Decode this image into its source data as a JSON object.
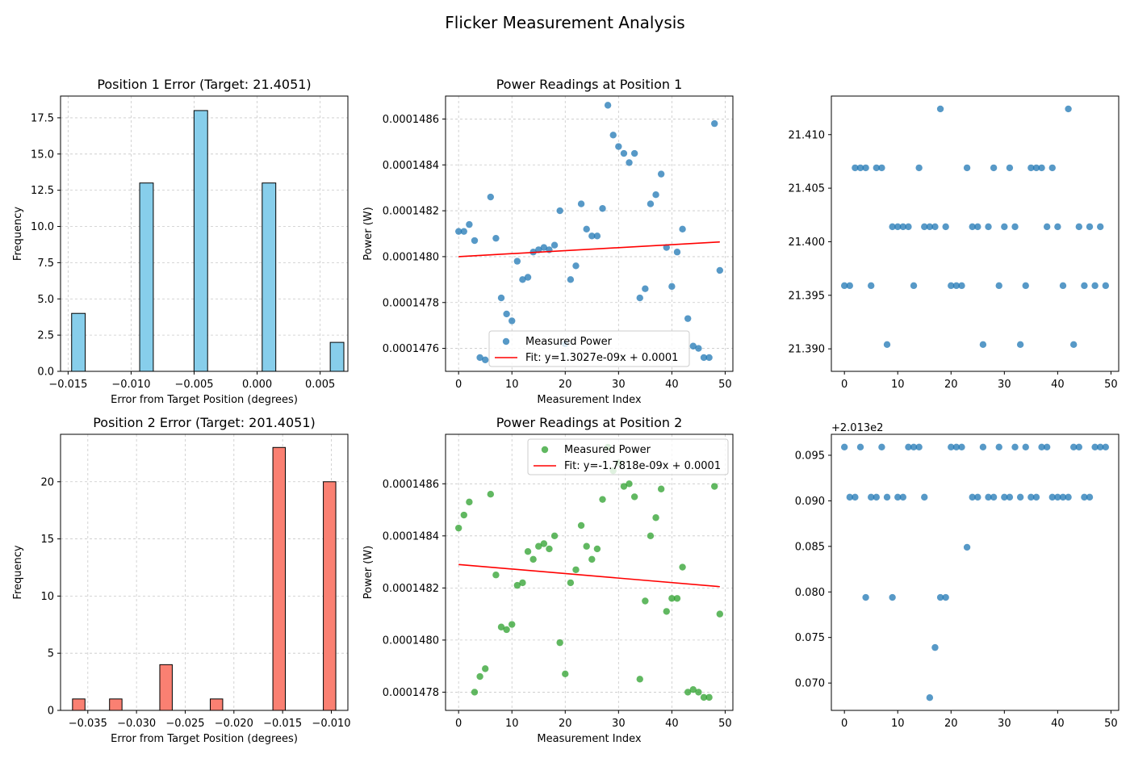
{
  "figure": {
    "title": "Flicker Measurement Analysis"
  },
  "chart_data": [
    {
      "id": "p1_hist",
      "type": "bar",
      "title": "Position 1 Error (Target: 21.4051)",
      "xlabel": "Error from Target Position (degrees)",
      "ylabel": "Frequency",
      "xlim": [
        -0.0156,
        0.0072
      ],
      "ylim": [
        0,
        19
      ],
      "xticks": [
        -0.015,
        -0.01,
        -0.005,
        0.0,
        0.005
      ],
      "xtick_labels": [
        "−0.015",
        "−0.010",
        "−0.005",
        "0.000",
        "0.005"
      ],
      "yticks": [
        0,
        2.5,
        5,
        7.5,
        10,
        12.5,
        15,
        17.5
      ],
      "ytick_labels": [
        "0.0",
        "2.5",
        "5.0",
        "7.5",
        "10.0",
        "12.5",
        "15.0",
        "17.5"
      ],
      "grid": true,
      "bar_color": "#87CEEB",
      "bin_width": 0.00108,
      "bins": [
        {
          "x": -0.01418,
          "count": 4
        },
        {
          "x": -0.00878,
          "count": 13
        },
        {
          "x": -0.00447,
          "count": 18
        },
        {
          "x": 0.00094,
          "count": 13
        },
        {
          "x": 0.00634,
          "count": 2
        }
      ]
    },
    {
      "id": "p1_power",
      "type": "scatter",
      "title": "Power Readings at Position 1",
      "xlabel": "Measurement Index",
      "ylabel": "Power (W)",
      "xlim": [
        -2.45,
        51.45
      ],
      "ylim": [
        0.0001475,
        0.0001487
      ],
      "xticks": [
        0,
        10,
        20,
        30,
        40,
        50
      ],
      "xtick_labels": [
        "0",
        "10",
        "20",
        "30",
        "40",
        "50"
      ],
      "yticks": [
        0.0001476,
        0.0001478,
        0.000148,
        0.0001482,
        0.0001484,
        0.0001486
      ],
      "ytick_labels": [
        "0.0001476",
        "0.0001478",
        "0.0001480",
        "0.0001482",
        "0.0001484",
        "0.0001486"
      ],
      "grid": true,
      "legend": "bottom-center",
      "series": [
        {
          "name": "Measured Power",
          "color": "#1f77b4",
          "x": [
            0,
            1,
            2,
            3,
            4,
            5,
            6,
            7,
            8,
            9,
            10,
            11,
            12,
            13,
            14,
            15,
            16,
            17,
            18,
            19,
            20,
            21,
            22,
            23,
            24,
            25,
            26,
            27,
            28,
            29,
            30,
            31,
            32,
            33,
            34,
            35,
            36,
            37,
            38,
            39,
            40,
            41,
            42,
            43,
            44,
            45,
            46,
            47,
            48,
            49
          ],
          "y": [
            0.00014811,
            0.00014811,
            0.00014814,
            0.00014807,
            0.00014756,
            0.00014755,
            0.00014826,
            0.00014808,
            0.00014782,
            0.00014775,
            0.00014772,
            0.00014798,
            0.0001479,
            0.00014791,
            0.00014802,
            0.00014803,
            0.00014804,
            0.00014803,
            0.00014805,
            0.0001482,
            0.00014762,
            0.0001479,
            0.00014796,
            0.00014823,
            0.00014812,
            0.00014809,
            0.00014809,
            0.00014821,
            0.00014866,
            0.00014853,
            0.00014848,
            0.00014845,
            0.00014841,
            0.00014845,
            0.00014782,
            0.00014786,
            0.00014823,
            0.00014827,
            0.00014836,
            0.00014804,
            0.00014787,
            0.00014802,
            0.00014812,
            0.00014773,
            0.00014761,
            0.0001476,
            0.00014756,
            0.00014756,
            0.00014858,
            0.00014794
          ]
        }
      ],
      "fit": {
        "name": "Fit: y=1.3027e-09x + 0.0001",
        "color": "#ff0000",
        "x": [
          0,
          49
        ],
        "y": [
          0.000148,
          0.000148064
        ]
      }
    },
    {
      "id": "p1_position",
      "type": "scatter",
      "title": "",
      "xlabel": "",
      "ylabel": "",
      "xlim": [
        -2.45,
        51.45
      ],
      "ylim": [
        21.3879,
        21.4136
      ],
      "xticks": [
        0,
        10,
        20,
        30,
        40,
        50
      ],
      "xtick_labels": [
        "0",
        "10",
        "20",
        "30",
        "40",
        "50"
      ],
      "yticks": [
        21.39,
        21.395,
        21.4,
        21.405,
        21.41
      ],
      "ytick_labels": [
        "21.390",
        "21.395",
        "21.400",
        "21.405",
        "21.410"
      ],
      "grid": false,
      "series": [
        {
          "color": "#1f77b4",
          "x": [
            0,
            1,
            2,
            3,
            4,
            5,
            6,
            7,
            8,
            9,
            10,
            11,
            12,
            13,
            14,
            15,
            16,
            17,
            18,
            19,
            20,
            21,
            22,
            23,
            24,
            25,
            26,
            27,
            28,
            29,
            30,
            31,
            32,
            33,
            34,
            35,
            36,
            37,
            38,
            39,
            40,
            41,
            42,
            43,
            44,
            45,
            46,
            47,
            48,
            49
          ],
          "y": [
            21.3959,
            21.3959,
            21.4069,
            21.4069,
            21.4069,
            21.3959,
            21.4069,
            21.4069,
            21.3904,
            21.4014,
            21.4014,
            21.4014,
            21.4014,
            21.3959,
            21.4069,
            21.4014,
            21.4014,
            21.4014,
            21.4124,
            21.4014,
            21.3959,
            21.3959,
            21.3959,
            21.4069,
            21.4014,
            21.4014,
            21.3904,
            21.4014,
            21.4069,
            21.3959,
            21.4014,
            21.4069,
            21.4014,
            21.3904,
            21.3959,
            21.4069,
            21.4069,
            21.4069,
            21.4014,
            21.4069,
            21.4014,
            21.3959,
            21.4124,
            21.3904,
            21.4014,
            21.3959,
            21.4014,
            21.3959,
            21.4014,
            21.3959
          ]
        }
      ]
    },
    {
      "id": "p2_hist",
      "type": "bar",
      "title": "Position 2 Error (Target: 201.4051)",
      "xlabel": "Error from Target Position (degrees)",
      "ylabel": "Frequency",
      "xlim": [
        -0.0378,
        -0.0083
      ],
      "ylim": [
        0,
        24.15
      ],
      "xticks": [
        -0.035,
        -0.03,
        -0.025,
        -0.02,
        -0.015,
        -0.01
      ],
      "xtick_labels": [
        "−0.035",
        "−0.030",
        "−0.025",
        "−0.020",
        "−0.015",
        "−0.010"
      ],
      "yticks": [
        0,
        5,
        10,
        15,
        20
      ],
      "ytick_labels": [
        "0",
        "5",
        "10",
        "15",
        "20"
      ],
      "grid": true,
      "bar_color": "#FA8072",
      "bin_width": 0.00128,
      "bins": [
        {
          "x": -0.03593,
          "count": 1
        },
        {
          "x": -0.03213,
          "count": 1
        },
        {
          "x": -0.02697,
          "count": 4
        },
        {
          "x": -0.02179,
          "count": 1
        },
        {
          "x": -0.01536,
          "count": 23
        },
        {
          "x": -0.01018,
          "count": 20
        }
      ]
    },
    {
      "id": "p2_power",
      "type": "scatter",
      "title": "Power Readings at Position 2",
      "xlabel": "Measurement Index",
      "ylabel": "Power (W)",
      "xlim": [
        -2.45,
        51.45
      ],
      "ylim": [
        0.00014773,
        0.00014879
      ],
      "xticks": [
        0,
        10,
        20,
        30,
        40,
        50
      ],
      "xtick_labels": [
        "0",
        "10",
        "20",
        "30",
        "40",
        "50"
      ],
      "yticks": [
        0.0001478,
        0.000148,
        0.0001482,
        0.0001484,
        0.0001486
      ],
      "ytick_labels": [
        "0.0001478",
        "0.0001480",
        "0.0001482",
        "0.0001484",
        "0.0001486"
      ],
      "grid": true,
      "legend": "top-right",
      "series": [
        {
          "name": "Measured Power",
          "color": "#2ca02c",
          "x": [
            0,
            1,
            2,
            3,
            4,
            5,
            6,
            7,
            8,
            9,
            10,
            11,
            12,
            13,
            14,
            15,
            16,
            17,
            18,
            19,
            20,
            21,
            22,
            23,
            24,
            25,
            26,
            27,
            28,
            29,
            30,
            31,
            32,
            33,
            34,
            35,
            36,
            37,
            38,
            39,
            40,
            41,
            42,
            43,
            44,
            45,
            46,
            47,
            48,
            49
          ],
          "y": [
            0.00014843,
            0.00014848,
            0.00014853,
            0.0001478,
            0.00014786,
            0.00014789,
            0.00014856,
            0.00014825,
            0.00014805,
            0.00014804,
            0.00014806,
            0.00014821,
            0.00014822,
            0.00014834,
            0.00014831,
            0.00014836,
            0.00014837,
            0.00014835,
            0.0001484,
            0.00014799,
            0.00014787,
            0.00014822,
            0.00014827,
            0.00014844,
            0.00014836,
            0.00014831,
            0.00014835,
            0.00014854,
            0.00014874,
            0.00014865,
            0.00014868,
            0.00014859,
            0.0001486,
            0.00014855,
            0.00014785,
            0.00014815,
            0.0001484,
            0.00014847,
            0.00014858,
            0.00014811,
            0.00014816,
            0.00014816,
            0.00014828,
            0.0001478,
            0.00014781,
            0.0001478,
            0.00014778,
            0.00014778,
            0.00014859,
            0.0001481
          ]
        }
      ],
      "fit": {
        "name": "Fit: y=-1.7818e-09x + 0.0001",
        "color": "#ff0000",
        "x": [
          0,
          49
        ],
        "y": [
          0.00014829,
          0.000148205
        ]
      }
    },
    {
      "id": "p2_position",
      "type": "scatter",
      "title": "",
      "xlabel": "",
      "ylabel": "",
      "offset_text": "+2.013e2",
      "xlim": [
        -2.45,
        51.45
      ],
      "ylim": [
        0.067,
        0.0973
      ],
      "xticks": [
        0,
        10,
        20,
        30,
        40,
        50
      ],
      "xtick_labels": [
        "0",
        "10",
        "20",
        "30",
        "40",
        "50"
      ],
      "yticks": [
        0.07,
        0.075,
        0.08,
        0.085,
        0.09,
        0.095
      ],
      "ytick_labels": [
        "0.070",
        "0.075",
        "0.080",
        "0.085",
        "0.090",
        "0.095"
      ],
      "grid": false,
      "series": [
        {
          "color": "#1f77b4",
          "x": [
            0,
            1,
            2,
            3,
            4,
            5,
            6,
            7,
            8,
            9,
            10,
            11,
            12,
            13,
            14,
            15,
            16,
            17,
            18,
            19,
            20,
            21,
            22,
            23,
            24,
            25,
            26,
            27,
            28,
            29,
            30,
            31,
            32,
            33,
            34,
            35,
            36,
            37,
            38,
            39,
            40,
            41,
            42,
            43,
            44,
            45,
            46,
            47,
            48,
            49
          ],
          "y": [
            0.0959,
            0.0904,
            0.0904,
            0.0959,
            0.0794,
            0.0904,
            0.0904,
            0.0959,
            0.0904,
            0.0794,
            0.0904,
            0.0904,
            0.0959,
            0.0959,
            0.0959,
            0.0904,
            0.0684,
            0.0739,
            0.0794,
            0.0794,
            0.0959,
            0.0959,
            0.0959,
            0.0849,
            0.0904,
            0.0904,
            0.0959,
            0.0904,
            0.0904,
            0.0959,
            0.0904,
            0.0904,
            0.0959,
            0.0904,
            0.0959,
            0.0904,
            0.0904,
            0.0959,
            0.0959,
            0.0904,
            0.0904,
            0.0904,
            0.0904,
            0.0959,
            0.0959,
            0.0904,
            0.0904,
            0.0959,
            0.0959,
            0.0959
          ]
        }
      ]
    }
  ]
}
